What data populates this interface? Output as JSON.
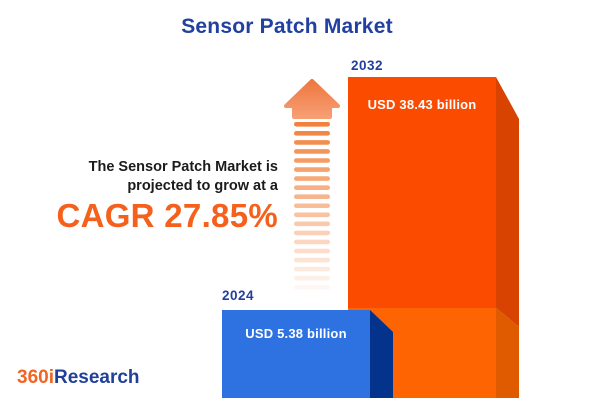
{
  "title": "Sensor Patch Market",
  "note": {
    "line1": "The Sensor Patch Market is",
    "line2": "projected to grow at a",
    "cagr": "CAGR 27.85%"
  },
  "chart_data": {
    "type": "bar",
    "title": "Sensor Patch Market",
    "unit": "USD billion",
    "categories": [
      "2024",
      "2032"
    ],
    "values": [
      5.38,
      38.43
    ],
    "value_labels": [
      "USD 5.38 billion",
      "USD 38.43 billion"
    ],
    "cagr_percent": 27.85,
    "annotation": "The Sensor Patch Market is projected to grow at a CAGR 27.85%",
    "legend": "none",
    "grid": "off",
    "style": "3d-cuboid-bars"
  },
  "icons": {
    "growth_arrow": "upward-arrow-with-fading-dashed-tail"
  },
  "logo": {
    "part1": "360i",
    "part2": "Research"
  },
  "colors": {
    "title_blue": "#21409F",
    "note_text": "#1B1B1B",
    "accent_orange": "#F5601C",
    "logo_orange": "#F26522",
    "logo_blue": "#21409A",
    "year_label_blue": "#24409E",
    "value_label_white": "#FFFFFF",
    "bar_2024_face": "#2E71E0",
    "bar_2024_side": "#04338B",
    "bar_2032_face": "#FA4B00",
    "bar_2032_side": "#D84301",
    "bar_2032_lower_face": "#FE6502",
    "bar_2032_lower_side": "#E05A00",
    "arrow_head_top": "#EE7840",
    "arrow_head_bottom": "#F79E73",
    "arrow_dash": "#F2813C"
  }
}
